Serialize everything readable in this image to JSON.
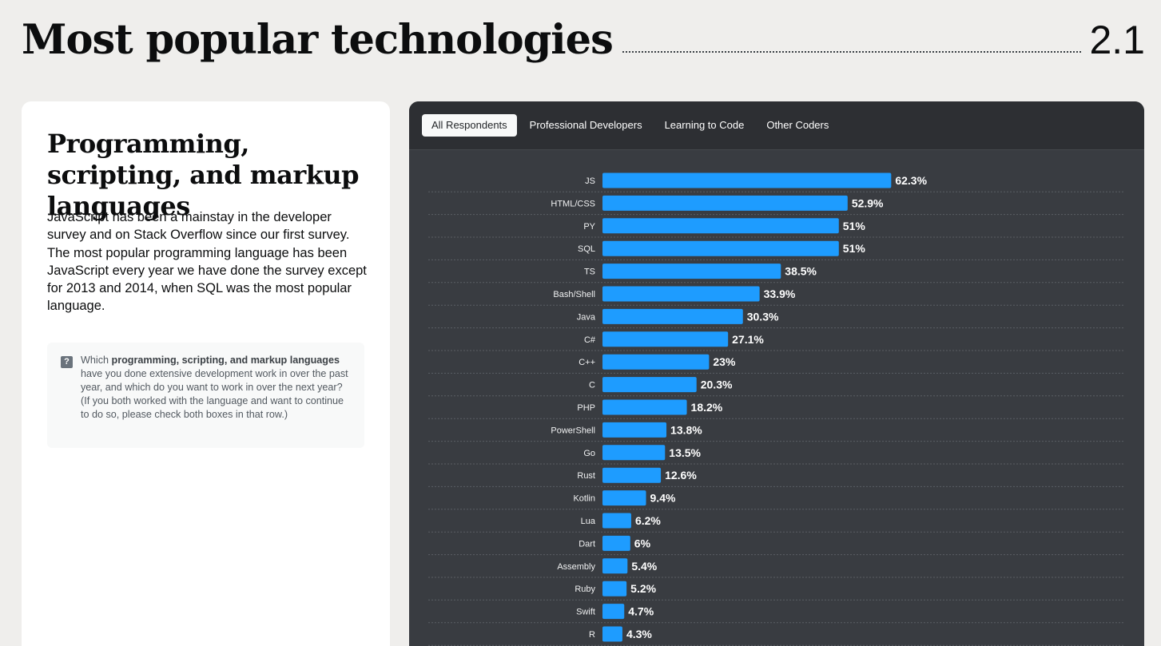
{
  "header": {
    "title": "Most popular technologies",
    "section_number": "2.1"
  },
  "card": {
    "title": "Programming, scripting, and markup languages",
    "description": "JavaScript has been a mainstay in the developer survey and on Stack Overflow since our first survey. The most popular programming language has been JavaScript every year we have done the survey except for 2013 and 2014, when SQL was the most popular language.",
    "question": {
      "icon": "question-icon",
      "prefix": "Which ",
      "bold": "programming, scripting, and markup languages",
      "suffix": " have you done extensive development work in over the past year, and which do you want to work in over the next year? (If you both worked with the language and want to continue to do so, please check both boxes in that row.)"
    }
  },
  "tabs": [
    {
      "label": "All Respondents",
      "active": true
    },
    {
      "label": "Professional Developers",
      "active": false
    },
    {
      "label": "Learning to Code",
      "active": false
    },
    {
      "label": "Other Coders",
      "active": false
    }
  ],
  "colors": {
    "bar": "#1e9cff",
    "panel": "#393c41"
  },
  "chart_data": {
    "type": "bar",
    "orientation": "horizontal",
    "categories": [
      "JS",
      "HTML/CSS",
      "PY",
      "SQL",
      "TS",
      "Bash/Shell",
      "Java",
      "C#",
      "C++",
      "C",
      "PHP",
      "PowerShell",
      "Go",
      "Rust",
      "Kotlin",
      "Lua",
      "Dart",
      "Assembly",
      "Ruby",
      "Swift",
      "R"
    ],
    "values": [
      62.3,
      52.9,
      51,
      51,
      38.5,
      33.9,
      30.3,
      27.1,
      23,
      20.3,
      18.2,
      13.8,
      13.5,
      12.6,
      9.4,
      6.2,
      6,
      5.4,
      5.2,
      4.7,
      4.3
    ],
    "value_labels": [
      "62.3%",
      "52.9%",
      "51%",
      "51%",
      "38.5%",
      "33.9%",
      "30.3%",
      "27.1%",
      "23%",
      "20.3%",
      "18.2%",
      "13.8%",
      "13.5%",
      "12.6%",
      "9.4%",
      "6.2%",
      "6%",
      "5.4%",
      "5.2%",
      "4.7%",
      "4.3%"
    ],
    "unit": "%",
    "xlim": [
      0,
      100
    ],
    "grid": true
  }
}
